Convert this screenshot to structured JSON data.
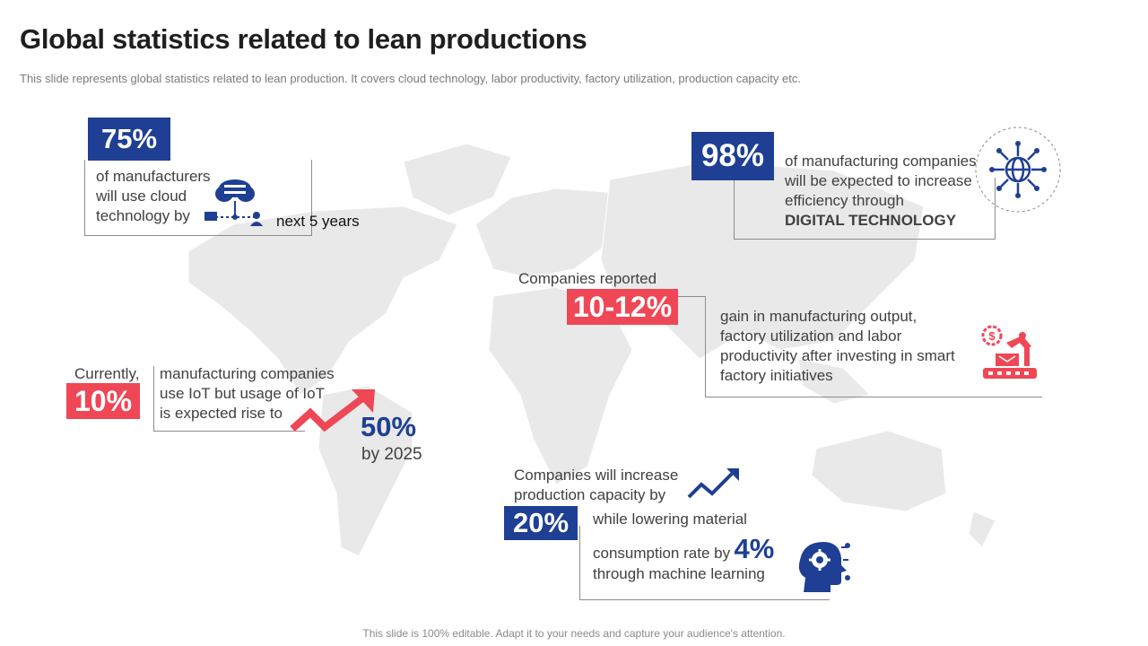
{
  "title": "Global statistics related to lean productions",
  "subtitle": "This slide represents global statistics related to lean production. It covers cloud technology, labor productivity, factory utilization, production capacity etc.",
  "footer": "This slide is 100% editable. Adapt it to your needs and capture your audience's attention.",
  "colors": {
    "blue": "#1e3f94",
    "red": "#ef4756",
    "map": "#e9e9e9"
  },
  "stat_cloud": {
    "value": "75%",
    "lines": [
      "of manufacturers",
      "will use cloud",
      "technology by"
    ],
    "suffix": "next 5 years",
    "icon": "cloud-network-icon"
  },
  "stat_digital": {
    "value": "98%",
    "lines": [
      "of manufacturing companies",
      "will be expected to increase",
      "efficiency through"
    ],
    "emphasis": "DIGITAL TECHNOLOGY",
    "icon": "digital-globe-icon"
  },
  "stat_output": {
    "prefix": "Companies reported",
    "value": "10-12%",
    "lines": [
      "gain in manufacturing output,",
      "factory utilization and labor",
      "productivity after investing in smart",
      "factory initiatives"
    ],
    "icon": "robot-arm-icon"
  },
  "stat_iot": {
    "prefix": "Currently,",
    "value": "10%",
    "lines": [
      "manufacturing companies",
      "use IoT but usage of IoT",
      "is expected rise to"
    ],
    "target_value": "50%",
    "target_label": "by 2025",
    "icon": "trend-up-arrow-icon"
  },
  "stat_capacity": {
    "lines": [
      "Companies will increase",
      "production capacity by"
    ],
    "value": "20%",
    "detail_line1": "while lowering material",
    "detail_line2": "consumption rate by",
    "detail_value": "4%",
    "detail_line3": "through machine learning",
    "icon": "ai-head-gear-icon"
  }
}
